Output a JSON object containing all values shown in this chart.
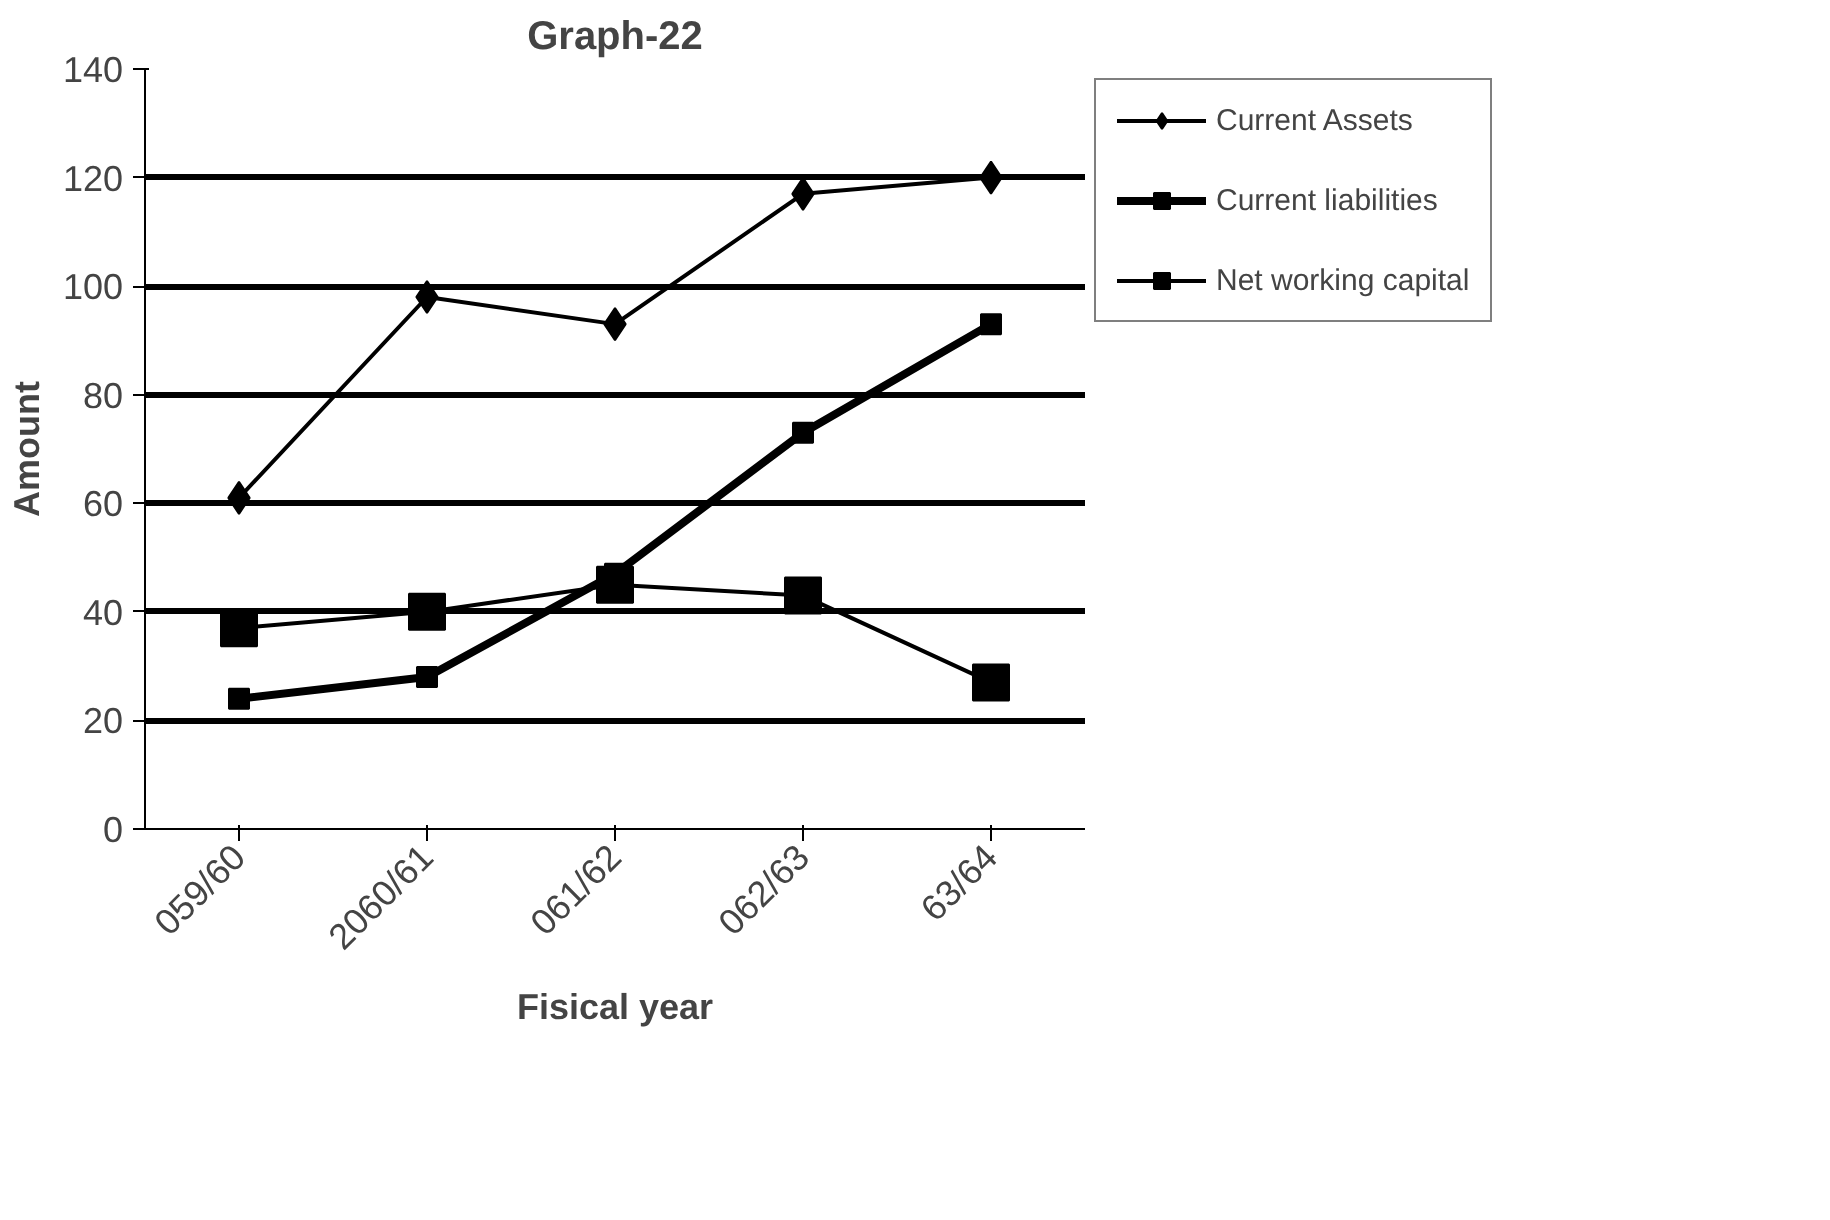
{
  "chart_data": {
    "type": "line",
    "title": "Graph-22",
    "xlabel": "Fisical year",
    "ylabel": "Amount",
    "categories": [
      "059/60",
      "2060/61",
      "061/62",
      "062/63",
      "63/64"
    ],
    "ylim": [
      0,
      140
    ],
    "yticks": [
      0,
      20,
      40,
      60,
      80,
      100,
      120,
      140
    ],
    "grid": "y",
    "legend": "right",
    "series": [
      {
        "name": "Current Assets",
        "color": "#000000",
        "marker": "diamond",
        "values": [
          61,
          98,
          93,
          117,
          120
        ]
      },
      {
        "name": "Current liabilities",
        "color": "#000000",
        "marker": "square",
        "values": [
          24,
          28,
          47,
          73,
          93
        ]
      },
      {
        "name": "Net working capital",
        "color": "#000000",
        "marker": "square",
        "values": [
          37,
          40,
          45,
          43,
          27
        ]
      }
    ]
  }
}
